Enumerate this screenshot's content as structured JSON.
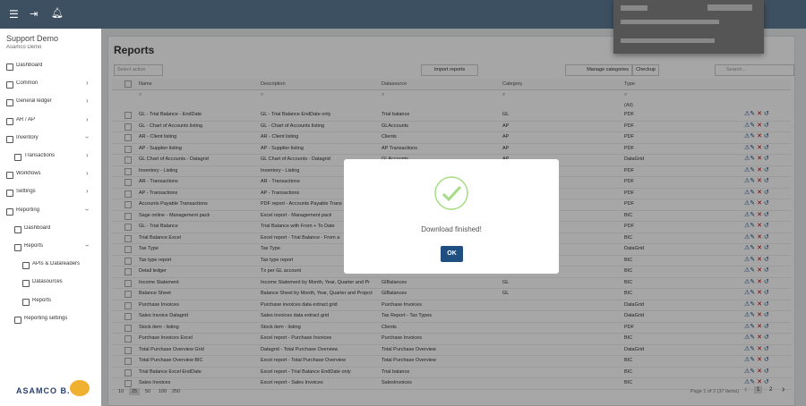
{
  "header": {
    "app_title": "Support Demo",
    "company": "Asamco Demo"
  },
  "sidebar": {
    "items": [
      {
        "label": "Dashboard",
        "level": 0
      },
      {
        "label": "Common",
        "level": 0,
        "chevron": "right"
      },
      {
        "label": "General ledger",
        "level": 0,
        "chevron": "right"
      },
      {
        "label": "AR / AP",
        "level": 0,
        "chevron": "right"
      },
      {
        "label": "Inventory",
        "level": 0,
        "chevron": "down"
      },
      {
        "label": "Transactions",
        "level": 1,
        "chevron": "right"
      },
      {
        "label": "Workflows",
        "level": 0,
        "chevron": "right"
      },
      {
        "label": "Settings",
        "level": 0,
        "chevron": "right"
      },
      {
        "label": "Reporting",
        "level": 0,
        "chevron": "down"
      },
      {
        "label": "Dashboard",
        "level": 1
      },
      {
        "label": "Reports",
        "level": 1,
        "chevron": "down"
      },
      {
        "label": "APIs & Datareaders",
        "level": 2
      },
      {
        "label": "Datasources",
        "level": 2
      },
      {
        "label": "Reports",
        "level": 2
      },
      {
        "label": "Reporting settings",
        "level": 1
      }
    ],
    "logo": "ASAMCO B.V."
  },
  "page": {
    "title": "Reports",
    "select_action": "Select action",
    "import_button": "Import reports",
    "manage_categories": "Manage categories",
    "checkup": "Checkup",
    "search_placeholder": "Search..."
  },
  "table": {
    "columns": [
      "Name",
      "Description",
      "Datasource",
      "Category",
      "Type"
    ],
    "type_filter": "(All)",
    "rows": [
      [
        "GL - Trial Balance - EndDate",
        "GL - Trial Balance EndDate only",
        "Trial balance",
        "GL",
        "PDF"
      ],
      [
        "GL - Chart of Accounts listing",
        "GL - Chart of Accounts listing",
        "GLAccounts",
        "AP",
        "PDF"
      ],
      [
        "AR - Client listing",
        "AR - Client listing",
        "Clients",
        "AP",
        "PDF"
      ],
      [
        "AP - Supplier listing",
        "AP - Supplier listing",
        "AP Transactions",
        "AP",
        "PDF"
      ],
      [
        "GL Chart of Accounts - Datagrid",
        "GL Chart of Accounts - Datagrid",
        "GLAccounts",
        "AP",
        "DataGrid"
      ],
      [
        "Inventory - Listing",
        "Inventory - Listing",
        null,
        null,
        "PDF"
      ],
      [
        "AR - Transactions",
        "AR - Transactions",
        null,
        null,
        "PDF"
      ],
      [
        "AP - Transactions",
        "AP - Transactions",
        null,
        null,
        "PDF"
      ],
      [
        "Accounts Payable Transactions",
        "PDF report - Accounts Payable Trans",
        null,
        null,
        "PDF"
      ],
      [
        "Sage online - Management pack",
        "Excel report - Management pack",
        null,
        null,
        "BIC"
      ],
      [
        "GL - Trial Balance",
        "Trial Balance with From + To Date",
        null,
        null,
        "PDF"
      ],
      [
        "Trial Balance Excel",
        "Excel report - Trial Balance - From a",
        null,
        null,
        "BIC"
      ],
      [
        "Tax Type",
        "Tax Type",
        null,
        null,
        "DataGrid"
      ],
      [
        "Tax type report",
        "Tax type report",
        null,
        null,
        "BIC"
      ],
      [
        "Detail ledger",
        "Tx per GL account",
        null,
        null,
        "BIC"
      ],
      [
        "Income Statement",
        "Income Statement by Month, Year, Quarter and Pr",
        "GlBalances",
        "GL",
        "BIC"
      ],
      [
        "Balance Sheet",
        "Balance Sheet by Month, Year, Quarter and Project",
        "GlBalances",
        "GL",
        "BIC"
      ],
      [
        "Purchase Invoices",
        "Purchase invoices data extract grid",
        "Purchase Invoices",
        null,
        "DataGrid"
      ],
      [
        "Sales Invoice Datagrid",
        "Sales invoices data extract grid",
        "Tax Report - Tax Types",
        null,
        "DataGrid"
      ],
      [
        "Stock item - listing",
        "Stock item - listing",
        "Clients",
        null,
        "PDF"
      ],
      [
        "Purchase Invoices Excel",
        "Excel report - Purchase Invoices",
        "Purchase Invoices",
        null,
        "BIC"
      ],
      [
        "Total Purchase Overview Grid",
        "Datagrid - Total Purchase Overview",
        "Total Purchase Overview",
        null,
        "DataGrid"
      ],
      [
        "Total Purchase Overview BIC",
        "Excel report - Total Purchase Overview",
        "Total Purchase Overview",
        null,
        "BIC"
      ],
      [
        "Trial Balance Excel EndDate",
        "Excel report - Trial Balance EndDate only",
        "Trial balance",
        null,
        "BIC"
      ],
      [
        "Sales Invoices",
        "Excel report - Sales Invoices",
        "SalesInvoices",
        null,
        "BIC"
      ]
    ]
  },
  "pagination": {
    "page_sizes": [
      10,
      25,
      50,
      100,
      250
    ],
    "active_size_index": 1,
    "info": "Page 1 of 2 (37 items)",
    "pages": [
      1,
      2
    ],
    "active_page_index": 0
  },
  "modal": {
    "message": "Download finished!",
    "button": "OK"
  }
}
